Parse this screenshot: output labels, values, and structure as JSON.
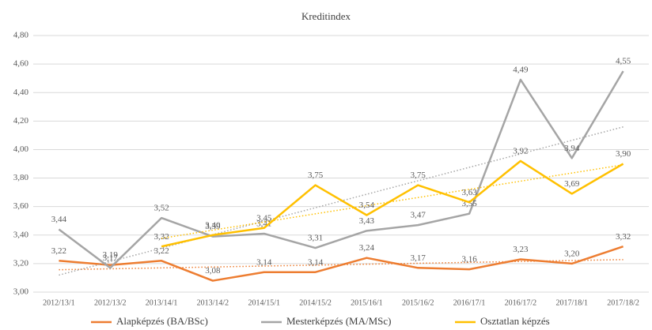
{
  "chart_data": {
    "type": "line",
    "title": "Kreditindex",
    "categories": [
      "2012/13/1",
      "2012/13/2",
      "2013/14/1",
      "2013/14/2",
      "2014/15/1",
      "2014/15/2",
      "2015/16/1",
      "2015/16/2",
      "2016/17/1",
      "2016/17/2",
      "2017/18/1",
      "2017/18/2"
    ],
    "series": [
      {
        "name": "Alapképzés (BA/BSc)",
        "color": "#ed7d31",
        "values": [
          3.22,
          3.19,
          3.22,
          3.08,
          3.14,
          3.14,
          3.24,
          3.17,
          3.16,
          3.23,
          3.2,
          3.32
        ],
        "value_labels": [
          "3,22",
          "3,19",
          "3,22",
          "3,08",
          "3,14",
          "3,14",
          "3,24",
          "3,17",
          "3,16",
          "3,23",
          "3,20",
          "3,32"
        ]
      },
      {
        "name": "Mesterképzés (MA/MSc)",
        "color": "#a5a5a5",
        "values": [
          3.44,
          3.17,
          3.52,
          3.39,
          3.41,
          3.31,
          3.43,
          3.47,
          3.55,
          4.49,
          3.94,
          4.55
        ],
        "value_labels": [
          "3,44",
          "3,17",
          "3,52",
          "3,39",
          "3,41",
          "3,31",
          "3,43",
          "3,47",
          "3,55",
          "4,49",
          "3,94",
          "4,55"
        ]
      },
      {
        "name": "Osztatlan képzés",
        "color": "#ffc000",
        "values": [
          null,
          null,
          3.32,
          3.4,
          3.45,
          3.75,
          3.54,
          3.75,
          3.63,
          3.92,
          3.69,
          3.9
        ],
        "value_labels": [
          null,
          null,
          "3,32",
          "3,40",
          "3,45",
          "3,75",
          "3,54",
          "3,75",
          "3,63",
          "3,92",
          "3,69",
          "3,90"
        ]
      }
    ],
    "ylim": [
      3.0,
      4.8
    ],
    "yticks": [
      {
        "value": 3.0,
        "label": "3,00"
      },
      {
        "value": 3.2,
        "label": "3,20"
      },
      {
        "value": 3.4,
        "label": "3,40"
      },
      {
        "value": 3.6,
        "label": "3,60"
      },
      {
        "value": 3.8,
        "label": "3,80"
      },
      {
        "value": 4.0,
        "label": "4,00"
      },
      {
        "value": 4.2,
        "label": "4,20"
      },
      {
        "value": 4.4,
        "label": "4,40"
      },
      {
        "value": 4.6,
        "label": "4,60"
      },
      {
        "value": 4.8,
        "label": "4,80"
      }
    ],
    "trendline": true,
    "legend": "bottom"
  }
}
